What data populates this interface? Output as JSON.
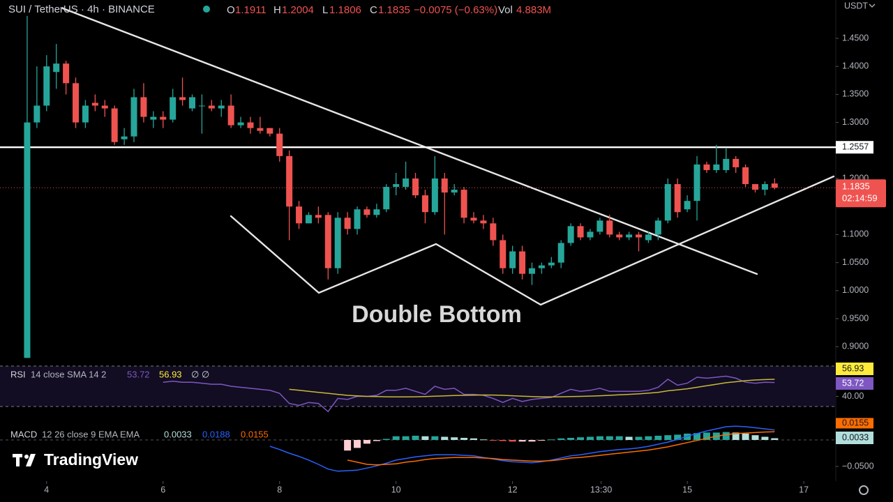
{
  "chart_data": {
    "type": "candlestick",
    "title": "SUI / TetherUS · 4h · BINANCE",
    "ohlc_labels": [
      "O",
      "H",
      "L",
      "C"
    ],
    "change": "−0.0075 (−0.63%)",
    "volume_label": "Vol",
    "volume": "4.883M",
    "currency": "USDT",
    "countdown": "02:14:59",
    "annotation": "Double Bottom",
    "up_color": "#26a69a",
    "down_color": "#ef5350",
    "open": [
      0.88,
      1.3,
      1.33,
      1.39,
      1.405,
      1.37,
      1.3,
      1.335,
      1.33,
      1.325,
      1.27,
      1.275,
      1.345,
      1.305,
      1.31,
      1.305,
      1.345,
      1.325,
      1.33,
      1.33,
      1.325,
      1.33,
      1.295,
      1.3,
      1.29,
      1.29,
      1.28,
      1.24,
      1.15,
      1.12,
      1.135,
      1.135,
      1.04,
      1.13,
      1.11,
      1.145,
      1.135,
      1.145,
      1.185,
      1.185,
      1.2,
      1.17,
      1.14,
      1.2,
      1.175,
      1.18,
      1.13,
      1.125,
      1.12,
      1.09,
      1.04,
      1.07,
      1.03,
      1.04,
      1.045,
      1.05,
      1.085,
      1.115,
      1.095,
      1.105,
      1.125,
      1.1,
      1.095,
      1.1,
      1.09,
      1.1,
      1.125,
      1.19,
      1.145,
      1.16,
      1.225,
      1.215,
      1.215,
      1.235,
      1.22,
      1.19,
      1.18,
      1.1911
    ],
    "high": [
      1.49,
      1.4,
      1.42,
      1.44,
      1.41,
      1.38,
      1.34,
      1.35,
      1.34,
      1.33,
      1.29,
      1.36,
      1.37,
      1.32,
      1.32,
      1.36,
      1.38,
      1.35,
      1.35,
      1.34,
      1.34,
      1.35,
      1.31,
      1.31,
      1.31,
      1.29,
      1.29,
      1.25,
      1.16,
      1.14,
      1.15,
      1.14,
      1.14,
      1.14,
      1.15,
      1.15,
      1.155,
      1.19,
      1.21,
      1.23,
      1.21,
      1.18,
      1.24,
      1.21,
      1.19,
      1.185,
      1.14,
      1.135,
      1.13,
      1.1,
      1.08,
      1.08,
      1.05,
      1.05,
      1.06,
      1.09,
      1.12,
      1.12,
      1.11,
      1.13,
      1.135,
      1.105,
      1.105,
      1.105,
      1.105,
      1.13,
      1.2,
      1.2,
      1.17,
      1.24,
      1.23,
      1.26,
      1.255,
      1.24,
      1.225,
      1.19,
      1.195,
      1.2004
    ],
    "low": [
      0.88,
      1.29,
      1.32,
      1.36,
      1.35,
      1.29,
      1.29,
      1.32,
      1.31,
      1.26,
      1.26,
      1.265,
      1.3,
      1.29,
      1.29,
      1.3,
      1.33,
      1.32,
      1.28,
      1.32,
      1.31,
      1.29,
      1.29,
      1.28,
      1.28,
      1.275,
      1.23,
      1.09,
      1.11,
      1.12,
      1.12,
      1.02,
      1.03,
      1.1,
      1.1,
      1.13,
      1.13,
      1.14,
      1.17,
      1.18,
      1.165,
      1.12,
      1.135,
      1.1,
      1.17,
      1.12,
      1.12,
      1.11,
      1.08,
      1.03,
      1.03,
      1.02,
      1.01,
      1.03,
      1.04,
      1.04,
      1.08,
      1.09,
      1.09,
      1.1,
      1.095,
      1.09,
      1.09,
      1.07,
      1.085,
      1.09,
      1.12,
      1.13,
      1.14,
      1.125,
      1.21,
      1.21,
      1.21,
      1.21,
      1.185,
      1.175,
      1.17,
      1.1806
    ],
    "close": [
      1.3,
      1.33,
      1.4,
      1.405,
      1.37,
      1.3,
      1.33,
      1.33,
      1.325,
      1.265,
      1.275,
      1.345,
      1.31,
      1.31,
      1.305,
      1.345,
      1.34,
      1.345,
      1.33,
      1.325,
      1.33,
      1.295,
      1.3,
      1.29,
      1.285,
      1.28,
      1.24,
      1.15,
      1.12,
      1.135,
      1.13,
      1.04,
      1.13,
      1.11,
      1.145,
      1.135,
      1.145,
      1.185,
      1.19,
      1.2,
      1.17,
      1.14,
      1.2,
      1.175,
      1.18,
      1.13,
      1.125,
      1.12,
      1.09,
      1.04,
      1.07,
      1.03,
      1.04,
      1.045,
      1.05,
      1.085,
      1.115,
      1.095,
      1.105,
      1.125,
      1.1,
      1.095,
      1.1,
      1.095,
      1.1,
      1.125,
      1.19,
      1.14,
      1.16,
      1.225,
      1.215,
      1.225,
      1.235,
      1.22,
      1.19,
      1.18,
      1.19,
      1.1835
    ],
    "ylim": [
      0.8692,
      1.5184
    ],
    "yticks": [
      {
        "value": 1.45,
        "label": "1.4500"
      },
      {
        "value": 1.4,
        "label": "1.4000"
      },
      {
        "value": 1.35,
        "label": "1.3500"
      },
      {
        "value": 1.3,
        "label": "1.3000"
      },
      {
        "value": 1.2,
        "label": "1.2000"
      },
      {
        "value": 1.1,
        "label": "1.1000"
      },
      {
        "value": 1.05,
        "label": "1.0500"
      },
      {
        "value": 1.0,
        "label": "1.0000"
      },
      {
        "value": 0.95,
        "label": "0.9500"
      },
      {
        "value": 0.9,
        "label": "0.9000"
      }
    ],
    "xlim": [
      -2.8,
      83.3
    ],
    "xticks": [
      {
        "value": 2,
        "label": "4"
      },
      {
        "value": 14,
        "label": "6"
      },
      {
        "value": 26,
        "label": "8"
      },
      {
        "value": 38,
        "label": "10"
      },
      {
        "value": 50,
        "label": "12"
      },
      {
        "value": 59.125,
        "label": "13:30"
      },
      {
        "value": 68,
        "label": "15"
      },
      {
        "value": 80,
        "label": "17"
      }
    ],
    "hline": {
      "value": 1.2557,
      "color": "#ffffff"
    },
    "rsi": {
      "name": "RSI",
      "params": "14 close SMA 14 2",
      "extra": "∅ ∅",
      "color": "#7e57c2",
      "values": [
        null,
        null,
        null,
        null,
        null,
        null,
        null,
        null,
        null,
        null,
        null,
        null,
        null,
        null,
        54,
        55,
        54,
        54,
        53,
        52,
        52,
        50,
        49,
        48,
        47,
        46,
        43,
        33,
        31,
        34,
        33,
        25,
        38,
        37,
        40,
        40,
        41,
        46,
        46,
        48,
        45,
        42,
        50,
        47,
        48,
        42,
        42,
        41,
        38,
        34,
        38,
        35,
        37,
        38,
        39,
        43,
        47,
        45,
        46,
        48,
        45,
        45,
        45,
        45,
        46,
        49,
        57,
        51,
        53,
        59,
        58,
        59,
        60,
        58,
        54,
        53,
        54,
        53.72
      ],
      "sma": {
        "color": "#c9b83a",
        "values": [
          null,
          null,
          null,
          null,
          null,
          null,
          null,
          null,
          null,
          null,
          null,
          null,
          null,
          null,
          null,
          null,
          null,
          null,
          null,
          null,
          null,
          null,
          null,
          null,
          null,
          null,
          null,
          47,
          46,
          45,
          44,
          43,
          42,
          41,
          40.5,
          40,
          39.8,
          39.6,
          39.5,
          39.5,
          39.6,
          39.8,
          40.2,
          40.5,
          40.8,
          41,
          41.2,
          41.4,
          41.3,
          41,
          40.6,
          40.2,
          39.8,
          39.5,
          39.5,
          39.6,
          39.8,
          40,
          40.3,
          40.6,
          41,
          41.5,
          42,
          42.5,
          43.2,
          44,
          45.5,
          46.5,
          47.5,
          49,
          50.5,
          52,
          53.5,
          54.5,
          55.5,
          56.2,
          56.6,
          56.93
        ]
      },
      "ylim": [
        30,
        70
      ],
      "yticks": [
        {
          "value": 40,
          "label": "40.00"
        }
      ]
    },
    "macd": {
      "name": "MACD",
      "params": "12 26 close 9 EMA EMA",
      "macd": {
        "color": "#2962ff",
        "values": [
          null,
          null,
          null,
          null,
          null,
          null,
          null,
          null,
          null,
          null,
          null,
          null,
          null,
          null,
          null,
          null,
          null,
          null,
          null,
          null,
          null,
          null,
          null,
          null,
          null,
          -0.012,
          -0.018,
          -0.025,
          -0.031,
          -0.038,
          -0.046,
          -0.055,
          -0.059,
          -0.058,
          -0.057,
          -0.053,
          -0.049,
          -0.044,
          -0.038,
          -0.035,
          -0.032,
          -0.03,
          -0.028,
          -0.028,
          -0.028,
          -0.029,
          -0.03,
          -0.033,
          -0.036,
          -0.039,
          -0.041,
          -0.042,
          -0.043,
          -0.041,
          -0.038,
          -0.034,
          -0.03,
          -0.028,
          -0.025,
          -0.022,
          -0.02,
          -0.018,
          -0.017,
          -0.015,
          -0.012,
          -0.008,
          -0.004,
          0.001,
          0.007,
          0.012,
          0.017,
          0.021,
          0.025,
          0.026,
          0.025,
          0.023,
          0.021,
          0.0188
        ]
      },
      "signal": {
        "color": "#ff6d00",
        "values": [
          null,
          null,
          null,
          null,
          null,
          null,
          null,
          null,
          null,
          null,
          null,
          null,
          null,
          null,
          null,
          null,
          null,
          null,
          null,
          null,
          null,
          null,
          null,
          null,
          null,
          null,
          null,
          null,
          null,
          null,
          null,
          null,
          null,
          -0.038,
          -0.042,
          -0.046,
          -0.047,
          -0.046,
          -0.045,
          -0.042,
          -0.04,
          -0.037,
          -0.035,
          -0.034,
          -0.033,
          -0.033,
          -0.033,
          -0.034,
          -0.035,
          -0.037,
          -0.038,
          -0.039,
          -0.04,
          -0.04,
          -0.039,
          -0.037,
          -0.034,
          -0.033,
          -0.031,
          -0.029,
          -0.027,
          -0.025,
          -0.023,
          -0.021,
          -0.019,
          -0.016,
          -0.013,
          -0.009,
          -0.005,
          -0.001,
          0.003,
          0.007,
          0.01,
          0.012,
          0.013,
          0.014,
          0.015,
          0.0155
        ]
      },
      "histogram": {
        "colors": {
          "up_rising": "#26a69a",
          "up_falling": "#b2dfdb",
          "down_falling": "#ef5350",
          "down_rising": "#ffcdd2"
        },
        "values": [
          null,
          null,
          null,
          null,
          null,
          null,
          null,
          null,
          null,
          null,
          null,
          null,
          null,
          null,
          null,
          null,
          null,
          null,
          null,
          null,
          null,
          null,
          null,
          null,
          null,
          null,
          null,
          null,
          null,
          null,
          null,
          null,
          null,
          -0.02,
          -0.015,
          -0.007,
          -0.002,
          0.002,
          0.007,
          0.007,
          0.008,
          0.007,
          0.007,
          0.006,
          0.005,
          0.004,
          0.003,
          0.001,
          -0.001,
          -0.002,
          -0.003,
          -0.003,
          -0.003,
          -0.001,
          0.001,
          0.003,
          0.004,
          0.005,
          0.006,
          0.007,
          0.007,
          0.007,
          0.006,
          0.006,
          0.007,
          0.008,
          0.009,
          0.01,
          0.012,
          0.013,
          0.014,
          0.014,
          0.015,
          0.014,
          0.012,
          0.009,
          0.006,
          0.0033
        ]
      },
      "ylim": [
        -0.0908,
        0.054
      ],
      "yticks": [
        {
          "value": -0.05,
          "label": "−0.0500"
        }
      ]
    }
  },
  "brand": "TradingView"
}
